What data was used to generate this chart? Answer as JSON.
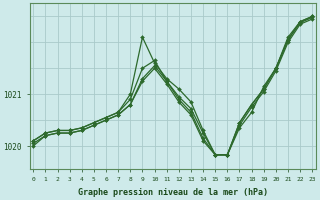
{
  "xlabel": "Graphe pression niveau de la mer (hPa)",
  "background_color": "#ceeaea",
  "grid_color": "#aacaca",
  "line_color": "#2d6a2d",
  "marker_color": "#2d6a2d",
  "hours": [
    0,
    1,
    2,
    3,
    4,
    5,
    6,
    7,
    8,
    9,
    10,
    11,
    12,
    13,
    14,
    15,
    16,
    17,
    18,
    19,
    20,
    21,
    22,
    23
  ],
  "series": [
    [
      1020.1,
      1020.25,
      1020.3,
      1020.3,
      1020.35,
      1020.45,
      1020.55,
      1020.65,
      1021.0,
      1022.1,
      1021.6,
      1021.3,
      1021.1,
      1020.85,
      1020.3,
      1019.83,
      1019.83,
      1020.35,
      1020.65,
      1021.15,
      1021.5,
      1022.1,
      1022.4,
      1022.5
    ],
    [
      1020.1,
      1020.25,
      1020.3,
      1020.3,
      1020.35,
      1020.45,
      1020.55,
      1020.65,
      1020.9,
      1021.5,
      1021.65,
      1021.25,
      1020.95,
      1020.72,
      1020.25,
      1019.83,
      1019.83,
      1020.45,
      1020.8,
      1021.1,
      1021.5,
      1022.05,
      1022.4,
      1022.5
    ],
    [
      1020.05,
      1020.2,
      1020.25,
      1020.25,
      1020.3,
      1020.4,
      1020.5,
      1020.6,
      1020.8,
      1021.3,
      1021.55,
      1021.25,
      1020.9,
      1020.65,
      1020.15,
      1019.83,
      1019.83,
      1020.45,
      1020.8,
      1021.1,
      1021.5,
      1022.05,
      1022.38,
      1022.48
    ],
    [
      1020.0,
      1020.2,
      1020.25,
      1020.25,
      1020.3,
      1020.4,
      1020.5,
      1020.6,
      1020.8,
      1021.25,
      1021.5,
      1021.2,
      1020.85,
      1020.6,
      1020.1,
      1019.83,
      1019.83,
      1020.4,
      1020.75,
      1021.05,
      1021.45,
      1022.0,
      1022.35,
      1022.45
    ]
  ],
  "ylim_min": 1019.55,
  "ylim_max": 1022.75,
  "ytick_values": [
    1020,
    1021
  ],
  "ytick_labels": [
    "1020",
    "1021"
  ],
  "xtick_values": [
    0,
    1,
    2,
    3,
    4,
    5,
    6,
    7,
    8,
    9,
    10,
    11,
    12,
    13,
    14,
    15,
    16,
    17,
    18,
    19,
    20,
    21,
    22,
    23
  ]
}
